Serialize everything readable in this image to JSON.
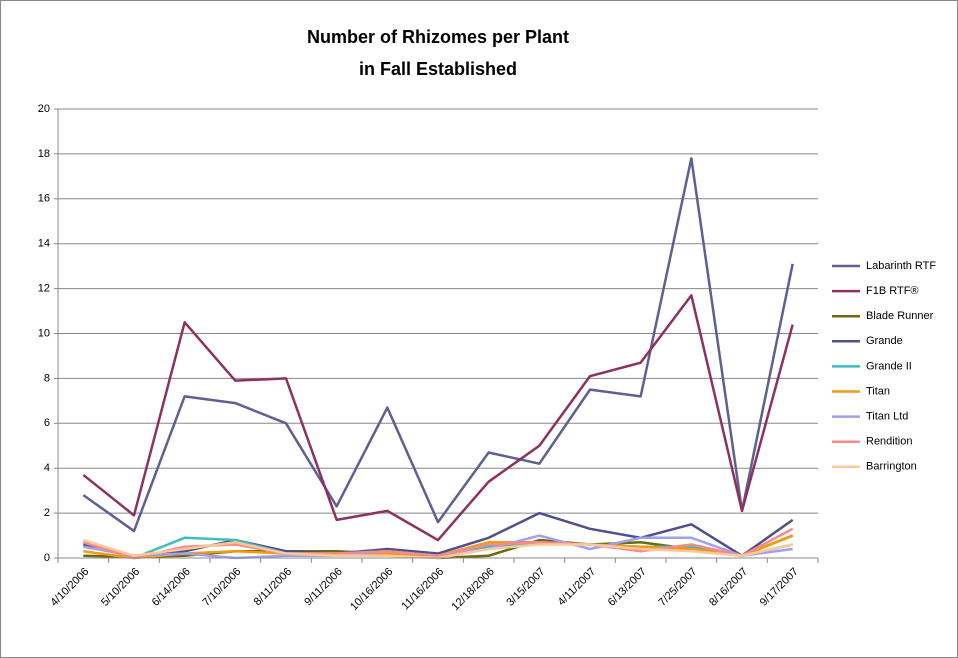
{
  "chart_data": {
    "type": "line",
    "title": [
      "Number of Rhizomes per Plant",
      "in Fall Established"
    ],
    "categories": [
      "4/10/2006",
      "5/10/2006",
      "6/14/2006",
      "7/10/2006",
      "8/11/2006",
      "9/11/2006",
      "10/16/2006",
      "11/16/2006",
      "12/18/2006",
      "3/15/2007",
      "4/11/2007",
      "6/13/2007",
      "7/25/2007",
      "8/16/2007",
      "9/17/2007"
    ],
    "series": [
      {
        "name": "Labarinth RTF",
        "color": "#5f5f92",
        "values": [
          2.8,
          1.2,
          7.2,
          6.9,
          6.0,
          2.3,
          6.7,
          1.6,
          4.7,
          4.2,
          7.5,
          7.2,
          17.8,
          2.1,
          13.1
        ]
      },
      {
        "name": "F1B RTF®",
        "color": "#8b3260",
        "values": [
          3.7,
          1.9,
          10.5,
          7.9,
          8.0,
          1.7,
          2.1,
          0.8,
          3.4,
          5.0,
          8.1,
          8.7,
          11.7,
          2.1,
          10.4
        ]
      },
      {
        "name": "Blade Runner",
        "color": "#6b6b10",
        "values": [
          0.1,
          0.05,
          0.1,
          0.3,
          0.3,
          0.3,
          0.2,
          0.0,
          0.1,
          0.8,
          0.6,
          0.7,
          0.4,
          0.1,
          1.0
        ]
      },
      {
        "name": "Grande",
        "color": "#4f4f8c",
        "values": [
          0.6,
          0.1,
          0.3,
          0.8,
          0.3,
          0.2,
          0.4,
          0.2,
          0.9,
          2.0,
          1.3,
          0.9,
          1.5,
          0.1,
          1.7
        ]
      },
      {
        "name": "Grande II",
        "color": "#3dbfc0",
        "values": [
          0.7,
          0.0,
          0.9,
          0.8,
          0.2,
          0.2,
          0.3,
          0.1,
          0.5,
          0.7,
          0.6,
          0.5,
          0.5,
          0.1,
          0.6
        ]
      },
      {
        "name": "Titan",
        "color": "#f59a0a",
        "values": [
          0.3,
          0.0,
          0.2,
          0.3,
          0.2,
          0.2,
          0.2,
          0.1,
          0.7,
          0.7,
          0.6,
          0.5,
          0.4,
          0.1,
          1.0
        ]
      },
      {
        "name": "Titan Ltd",
        "color": "#a0a0f0",
        "values": [
          0.5,
          0.1,
          0.2,
          0.0,
          0.1,
          0.1,
          0.3,
          0.1,
          0.4,
          1.0,
          0.4,
          0.9,
          0.9,
          0.1,
          0.4
        ]
      },
      {
        "name": "Rendition",
        "color": "#f58a8a",
        "values": [
          0.7,
          0.0,
          0.5,
          0.6,
          0.2,
          0.2,
          0.3,
          0.1,
          0.6,
          0.7,
          0.6,
          0.3,
          0.6,
          0.1,
          1.3
        ]
      },
      {
        "name": "Barrington",
        "color": "#fbc898",
        "values": [
          0.8,
          0.1,
          0.4,
          0.7,
          0.2,
          0.1,
          0.1,
          0.0,
          0.4,
          0.6,
          0.6,
          0.4,
          0.3,
          0.1,
          0.6
        ]
      }
    ],
    "ylim": [
      0,
      20
    ],
    "yticks": [
      0,
      2,
      4,
      6,
      8,
      10,
      12,
      14,
      16,
      18,
      20
    ],
    "grid": true,
    "legend": "right"
  }
}
